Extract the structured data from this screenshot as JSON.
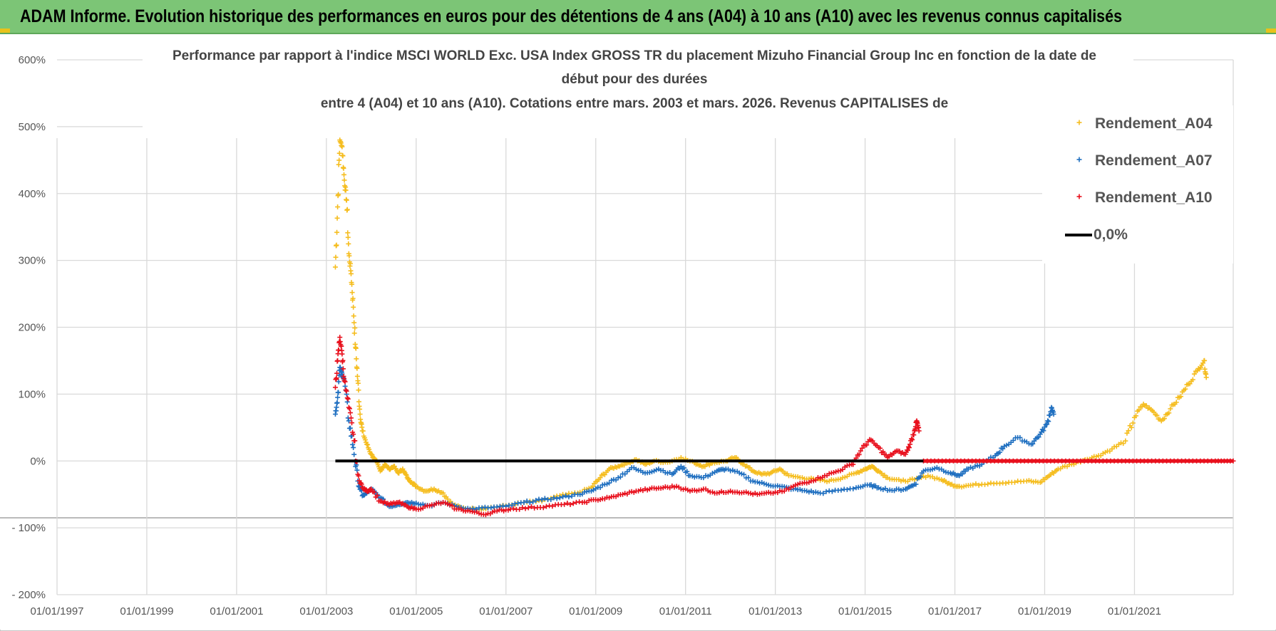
{
  "banner": {
    "title": "ADAM Informe. Evolution historique des performances en euros pour des détentions de 4 ans (A04) à 10 ans (A10) avec les revenus connus capitalisés"
  },
  "colors": {
    "banner": "#7cc576",
    "A04": "#f5bd1f",
    "A07": "#1f6fc0",
    "A10": "#e8101d",
    "zero": "#000000",
    "grid": "#d9d9d9"
  },
  "chart_data": {
    "type": "scatter",
    "title_lines": [
      "Performance par rapport à l'indice MSCI WORLD Exc. USA Index GROSS TR  du placement Mizuho Financial Group Inc en fonction de la date de",
      "début pour des durées",
      "entre 4 (A04) et 10 ans (A10).  Cotations entre mars. 2003 et mars. 2026. Revenus CAPITALISES de"
    ],
    "y_ticks": [
      "600%",
      "500%",
      "400%",
      "300%",
      "200%",
      "100%",
      "0%",
      "- 100%",
      "- 200%"
    ],
    "y_tick_values": [
      600,
      500,
      400,
      300,
      200,
      100,
      0,
      -100,
      -200
    ],
    "x_ticks": [
      "01/01/1997",
      "01/01/1999",
      "01/01/2001",
      "01/01/2003",
      "01/01/2005",
      "01/01/2007",
      "01/01/2009",
      "01/01/2011",
      "01/01/2013",
      "01/01/2015",
      "01/01/2017",
      "01/01/2019",
      "01/01/2021"
    ],
    "x_tick_values": [
      1997,
      1999,
      2001,
      2003,
      2005,
      2007,
      2009,
      2011,
      2013,
      2015,
      2017,
      2019,
      2021
    ],
    "xlim": [
      1997,
      2023.2
    ],
    "ylim": [
      -200,
      600
    ],
    "legend": {
      "position": "top-right",
      "entries": [
        {
          "key": "A04",
          "label": "Rendement_A04",
          "marker": "+"
        },
        {
          "key": "A07",
          "label": "Rendement_A07",
          "marker": "+"
        },
        {
          "key": "A10",
          "label": "Rendement_A10",
          "marker": "+"
        },
        {
          "key": "zero",
          "label": "0,0%",
          "marker": "line"
        }
      ]
    },
    "zero_line": {
      "x_start": 2003.2,
      "x_end": 2023.2,
      "value": 0
    },
    "series": [
      {
        "name": "Rendement_A04",
        "key": "A04",
        "points": [
          [
            2003.2,
            290
          ],
          [
            2003.25,
            380
          ],
          [
            2003.3,
            480
          ],
          [
            2003.35,
            470
          ],
          [
            2003.4,
            420
          ],
          [
            2003.45,
            390
          ],
          [
            2003.5,
            310
          ],
          [
            2003.55,
            280
          ],
          [
            2003.6,
            230
          ],
          [
            2003.65,
            170
          ],
          [
            2003.7,
            120
          ],
          [
            2003.75,
            70
          ],
          [
            2003.8,
            45
          ],
          [
            2003.9,
            25
          ],
          [
            2004.0,
            10
          ],
          [
            2004.1,
            0
          ],
          [
            2004.2,
            -15
          ],
          [
            2004.3,
            -5
          ],
          [
            2004.4,
            -12
          ],
          [
            2004.5,
            -8
          ],
          [
            2004.6,
            -18
          ],
          [
            2004.7,
            -12
          ],
          [
            2004.8,
            -25
          ],
          [
            2004.9,
            -32
          ],
          [
            2005.0,
            -38
          ],
          [
            2005.2,
            -45
          ],
          [
            2005.4,
            -42
          ],
          [
            2005.6,
            -48
          ],
          [
            2005.8,
            -65
          ],
          [
            2006.0,
            -70
          ],
          [
            2006.3,
            -72
          ],
          [
            2006.6,
            -70
          ],
          [
            2007.0,
            -67
          ],
          [
            2007.4,
            -62
          ],
          [
            2007.8,
            -60
          ],
          [
            2008.2,
            -52
          ],
          [
            2008.6,
            -48
          ],
          [
            2008.9,
            -40
          ],
          [
            2009.1,
            -25
          ],
          [
            2009.3,
            -12
          ],
          [
            2009.5,
            -8
          ],
          [
            2009.7,
            -3
          ],
          [
            2009.9,
            2
          ],
          [
            2010.1,
            -5
          ],
          [
            2010.3,
            0
          ],
          [
            2010.6,
            -2
          ],
          [
            2010.9,
            5
          ],
          [
            2011.2,
            -3
          ],
          [
            2011.4,
            -8
          ],
          [
            2011.6,
            -3
          ],
          [
            2011.9,
            0
          ],
          [
            2012.1,
            5
          ],
          [
            2012.3,
            -5
          ],
          [
            2012.5,
            -15
          ],
          [
            2012.7,
            -20
          ],
          [
            2012.9,
            -18
          ],
          [
            2013.1,
            -12
          ],
          [
            2013.3,
            -22
          ],
          [
            2013.6,
            -25
          ],
          [
            2013.9,
            -28
          ],
          [
            2014.2,
            -30
          ],
          [
            2014.5,
            -25
          ],
          [
            2014.8,
            -18
          ],
          [
            2015.0,
            -12
          ],
          [
            2015.15,
            -8
          ],
          [
            2015.3,
            -15
          ],
          [
            2015.5,
            -25
          ],
          [
            2015.8,
            -30
          ],
          [
            2016.1,
            -28
          ],
          [
            2016.4,
            -22
          ],
          [
            2016.7,
            -28
          ],
          [
            2016.9,
            -35
          ],
          [
            2017.1,
            -38
          ],
          [
            2017.4,
            -36
          ],
          [
            2017.8,
            -33
          ],
          [
            2018.2,
            -32
          ],
          [
            2018.6,
            -30
          ],
          [
            2018.9,
            -32
          ],
          [
            2019.1,
            -22
          ],
          [
            2019.3,
            -12
          ],
          [
            2019.6,
            -5
          ],
          [
            2019.9,
            2
          ],
          [
            2020.2,
            8
          ],
          [
            2020.5,
            18
          ],
          [
            2020.8,
            30
          ],
          [
            2021.0,
            65
          ],
          [
            2021.2,
            85
          ],
          [
            2021.4,
            75
          ],
          [
            2021.6,
            60
          ],
          [
            2021.8,
            78
          ],
          [
            2022.0,
            95
          ],
          [
            2022.2,
            115
          ],
          [
            2022.4,
            135
          ],
          [
            2022.55,
            150
          ],
          [
            2022.6,
            125
          ]
        ]
      },
      {
        "name": "Rendement_A07",
        "key": "A07",
        "points": [
          [
            2003.2,
            70
          ],
          [
            2003.25,
            95
          ],
          [
            2003.3,
            140
          ],
          [
            2003.35,
            130
          ],
          [
            2003.4,
            120
          ],
          [
            2003.5,
            60
          ],
          [
            2003.6,
            20
          ],
          [
            2003.7,
            -30
          ],
          [
            2003.8,
            -52
          ],
          [
            2003.9,
            -48
          ],
          [
            2004.0,
            -42
          ],
          [
            2004.2,
            -55
          ],
          [
            2004.4,
            -68
          ],
          [
            2004.6,
            -65
          ],
          [
            2004.8,
            -62
          ],
          [
            2005.0,
            -63
          ],
          [
            2005.3,
            -67
          ],
          [
            2005.6,
            -62
          ],
          [
            2005.9,
            -68
          ],
          [
            2006.2,
            -72
          ],
          [
            2006.6,
            -70
          ],
          [
            2007.0,
            -68
          ],
          [
            2007.4,
            -62
          ],
          [
            2007.8,
            -58
          ],
          [
            2008.2,
            -55
          ],
          [
            2008.6,
            -50
          ],
          [
            2008.9,
            -45
          ],
          [
            2009.2,
            -35
          ],
          [
            2009.5,
            -25
          ],
          [
            2009.8,
            -10
          ],
          [
            2010.1,
            -18
          ],
          [
            2010.4,
            -12
          ],
          [
            2010.7,
            -20
          ],
          [
            2010.9,
            -8
          ],
          [
            2011.1,
            -22
          ],
          [
            2011.4,
            -25
          ],
          [
            2011.7,
            -15
          ],
          [
            2011.9,
            -12
          ],
          [
            2012.2,
            -18
          ],
          [
            2012.5,
            -30
          ],
          [
            2012.8,
            -35
          ],
          [
            2013.1,
            -38
          ],
          [
            2013.4,
            -42
          ],
          [
            2013.7,
            -45
          ],
          [
            2014.0,
            -48
          ],
          [
            2014.4,
            -44
          ],
          [
            2014.8,
            -40
          ],
          [
            2015.1,
            -36
          ],
          [
            2015.3,
            -40
          ],
          [
            2015.6,
            -44
          ],
          [
            2015.9,
            -42
          ],
          [
            2016.1,
            -35
          ],
          [
            2016.3,
            -15
          ],
          [
            2016.6,
            -10
          ],
          [
            2016.9,
            -18
          ],
          [
            2017.1,
            -22
          ],
          [
            2017.3,
            -12
          ],
          [
            2017.6,
            -5
          ],
          [
            2017.9,
            8
          ],
          [
            2018.1,
            22
          ],
          [
            2018.4,
            35
          ],
          [
            2018.7,
            25
          ],
          [
            2018.9,
            40
          ],
          [
            2019.05,
            55
          ],
          [
            2019.15,
            80
          ],
          [
            2019.2,
            70
          ]
        ]
      },
      {
        "name": "Rendement_A10",
        "key": "A10",
        "points": [
          [
            2003.2,
            110
          ],
          [
            2003.25,
            150
          ],
          [
            2003.3,
            185
          ],
          [
            2003.35,
            160
          ],
          [
            2003.4,
            120
          ],
          [
            2003.5,
            80
          ],
          [
            2003.6,
            40
          ],
          [
            2003.7,
            -20
          ],
          [
            2003.8,
            -40
          ],
          [
            2003.9,
            -45
          ],
          [
            2004.0,
            -42
          ],
          [
            2004.2,
            -60
          ],
          [
            2004.4,
            -65
          ],
          [
            2004.6,
            -62
          ],
          [
            2004.8,
            -68
          ],
          [
            2005.0,
            -72
          ],
          [
            2005.3,
            -67
          ],
          [
            2005.6,
            -62
          ],
          [
            2005.9,
            -72
          ],
          [
            2006.2,
            -75
          ],
          [
            2006.5,
            -80
          ],
          [
            2006.8,
            -75
          ],
          [
            2007.1,
            -72
          ],
          [
            2007.5,
            -70
          ],
          [
            2007.9,
            -68
          ],
          [
            2008.3,
            -65
          ],
          [
            2008.7,
            -62
          ],
          [
            2009.0,
            -58
          ],
          [
            2009.3,
            -55
          ],
          [
            2009.6,
            -50
          ],
          [
            2009.9,
            -45
          ],
          [
            2010.2,
            -42
          ],
          [
            2010.5,
            -40
          ],
          [
            2010.8,
            -38
          ],
          [
            2011.1,
            -45
          ],
          [
            2011.4,
            -42
          ],
          [
            2011.7,
            -48
          ],
          [
            2012.0,
            -45
          ],
          [
            2012.3,
            -47
          ],
          [
            2012.6,
            -50
          ],
          [
            2012.9,
            -48
          ],
          [
            2013.2,
            -45
          ],
          [
            2013.5,
            -35
          ],
          [
            2013.8,
            -30
          ],
          [
            2014.1,
            -22
          ],
          [
            2014.4,
            -15
          ],
          [
            2014.7,
            -5
          ],
          [
            2014.9,
            15
          ],
          [
            2015.1,
            32
          ],
          [
            2015.3,
            20
          ],
          [
            2015.5,
            5
          ],
          [
            2015.7,
            15
          ],
          [
            2015.9,
            10
          ],
          [
            2016.0,
            25
          ],
          [
            2016.1,
            45
          ],
          [
            2016.15,
            60
          ],
          [
            2016.2,
            45
          ]
        ]
      },
      {
        "name": "Rendement_A10 (fin)",
        "key": "A10",
        "legend": false,
        "points": [
          [
            2016.3,
            0
          ],
          [
            2016.8,
            0
          ],
          [
            2017.3,
            0
          ],
          [
            2017.8,
            0
          ],
          [
            2018.3,
            0
          ],
          [
            2018.8,
            0
          ],
          [
            2019.3,
            0
          ],
          [
            2019.8,
            0
          ],
          [
            2020.3,
            0
          ],
          [
            2020.8,
            0
          ],
          [
            2021.3,
            0
          ],
          [
            2021.8,
            0
          ],
          [
            2022.3,
            0
          ],
          [
            2022.8,
            0
          ],
          [
            2023.2,
            0
          ]
        ]
      }
    ]
  }
}
